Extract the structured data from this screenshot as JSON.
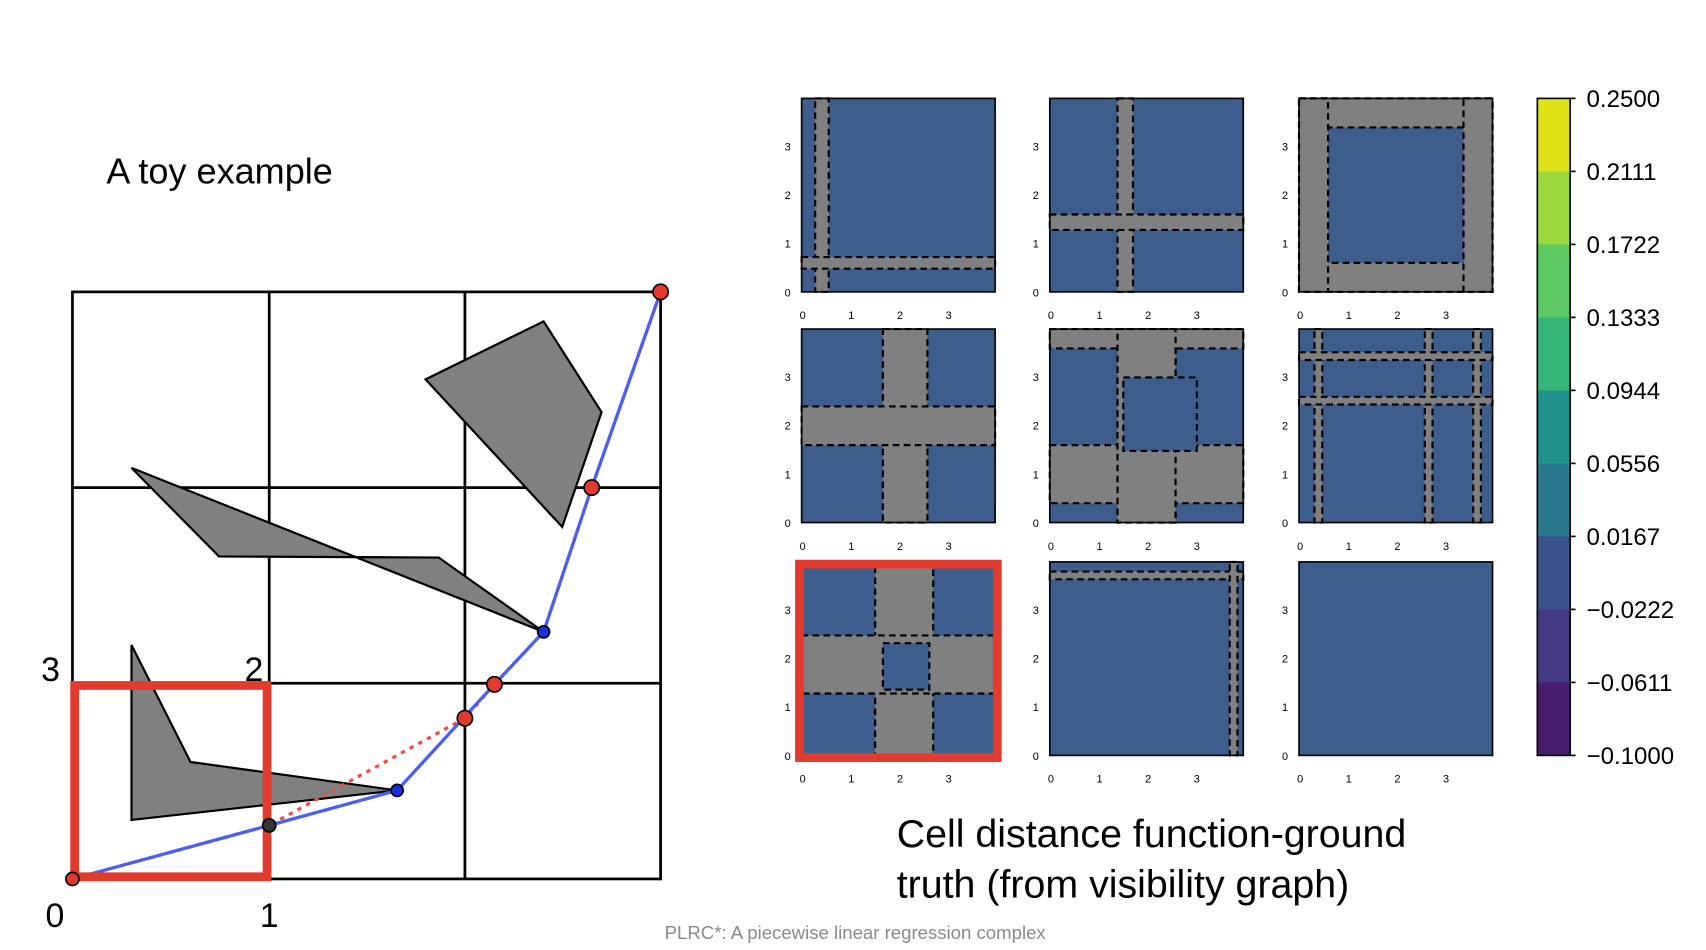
{
  "title": "A toy example",
  "corner_labels": [
    "3",
    "2",
    "0",
    "1"
  ],
  "subplot_tick_labels": [
    "0",
    "1",
    "2",
    "3"
  ],
  "colorbar_labels": [
    "0.2500",
    "0.2111",
    "0.1722",
    "0.1333",
    "0.0944",
    "0.0556",
    "0.0167",
    "−0.0222",
    "−0.0611",
    "−0.1000"
  ],
  "caption_lines": [
    "Cell distance function-ground",
    "truth (from visibility graph)"
  ],
  "footer": "PLRC*: A piecewise linear regression complex"
}
